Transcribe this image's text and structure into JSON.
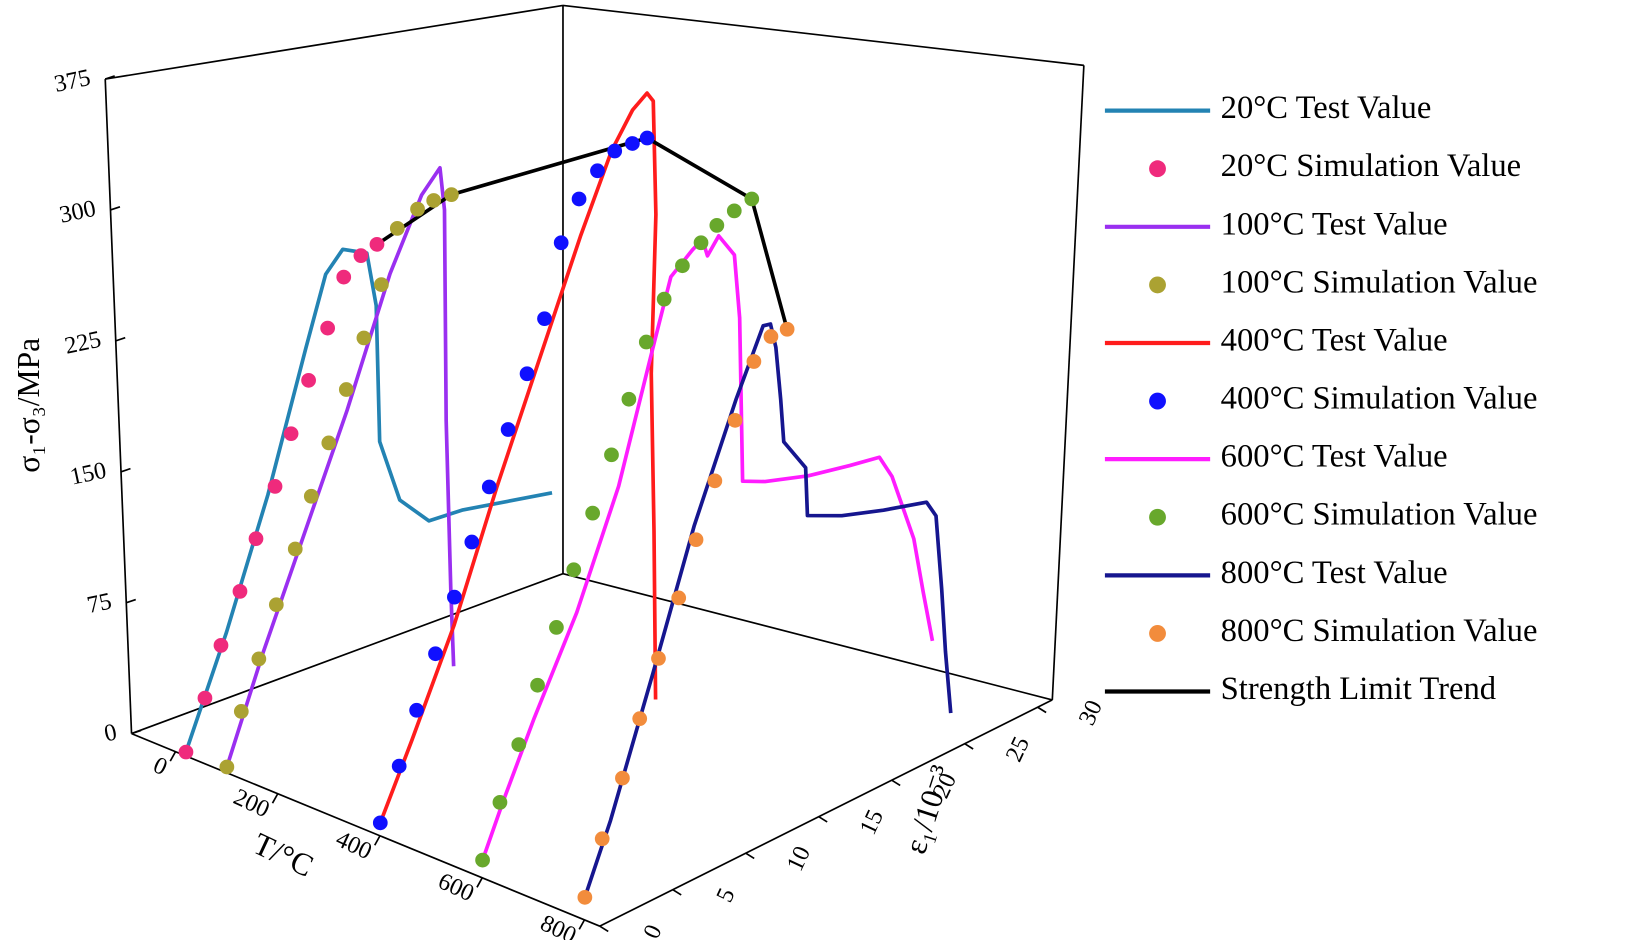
{
  "chart_data": {
    "type": "line3d",
    "t_label": "T/°C",
    "e_label": "ε₁/10⁻³",
    "y_label": "σ₁-σ₃/MPa",
    "tlim": [
      -86,
      830
    ],
    "tticks": [
      0,
      200,
      400,
      600,
      800
    ],
    "elim": [
      0,
      31
    ],
    "eticks": [
      0,
      5,
      10,
      15,
      20,
      25,
      30
    ],
    "ylim": [
      0,
      375
    ],
    "yticks": [
      0,
      75,
      150,
      225,
      300,
      375
    ],
    "series": [
      {
        "name": "20°C Test Value",
        "mode": "line",
        "color": "#2383b3",
        "temperature": 20,
        "x": [
          0,
          3,
          6.1,
          9,
          10.5,
          11.7,
          13.3,
          13.8,
          13.7,
          14.9,
          16.8,
          19.1,
          25.1
        ],
        "values": [
          0,
          58,
          126,
          200,
          237,
          247,
          239,
          207,
          129,
          91,
          72,
          70,
          58
        ]
      },
      {
        "name": "20°C Simulation Value",
        "mode": "markers",
        "color": "#ef2a7c",
        "temperature": 20,
        "x": [
          0,
          1.4,
          2.6,
          4,
          5.2,
          6.6,
          7.8,
          9.1,
          10.5,
          11.7,
          12.9,
          14
        ],
        "values": [
          0,
          26,
          52,
          78,
          104,
          129,
          155,
          181,
          206,
          231,
          239,
          241.5
        ]
      },
      {
        "name": "100°C Test Value",
        "mode": "line",
        "color": "#9a2ff0",
        "temperature": 100,
        "x": [
          0,
          2.7,
          5.8,
          8.9,
          12.1,
          14.4,
          15.7,
          15.9,
          15.5,
          15.4,
          15.4
        ],
        "values": [
          0,
          56,
          114.5,
          173,
          240,
          277,
          288,
          263,
          143,
          46,
          2
        ]
      },
      {
        "name": "100°C Simulation Value",
        "mode": "markers",
        "color": "#aba232",
        "temperature": 100,
        "x": [
          0,
          1.1,
          2.4,
          3.7,
          5.1,
          6.3,
          7.6,
          8.9,
          10.2,
          11.5,
          12.7,
          14.1,
          15.2,
          16.4
        ],
        "values": [
          0,
          28,
          53.5,
          80,
          107,
          133,
          159,
          185,
          210,
          236,
          264,
          270,
          271,
          270
        ]
      },
      {
        "name": "400°C Test Value",
        "mode": "line",
        "color": "#ff1c1c",
        "temperature": 400,
        "x": [
          0,
          2.3,
          5.4,
          8.6,
          11.7,
          14.8,
          17.1,
          18.6,
          19.6,
          20,
          19.9,
          19.2,
          19,
          18.7
        ],
        "values": [
          0,
          39,
          94,
          162,
          223,
          284,
          325,
          343,
          349,
          343,
          278,
          189,
          99,
          3
        ]
      },
      {
        "name": "400°C Simulation Value",
        "mode": "markers",
        "color": "#1010ff",
        "temperature": 400,
        "x": [
          0,
          1.4,
          2.7,
          4.1,
          5.5,
          6.8,
          8.1,
          9.5,
          10.9,
          12.2,
          13.5,
          14.8,
          16.1,
          17.3,
          18.5,
          19.5
        ],
        "values": [
          0,
          27.6,
          55,
          82.5,
          110,
          137,
          164,
          192,
          219,
          246,
          285,
          305.5,
          317,
          324,
          324,
          323.5
        ]
      },
      {
        "name": "600°C Test Value",
        "mode": "line",
        "color": "#ff1cff",
        "temperature": 600,
        "x": [
          0,
          1.5,
          3.8,
          6.9,
          10,
          12.4,
          14,
          15.5,
          16.2,
          16.5,
          17.3,
          18.3,
          18.5,
          18.3,
          19.8,
          22.7,
          25.5,
          27.5,
          28.3,
          29.6,
          30.1,
          30.6
        ],
        "values": [
          0,
          28,
          68,
          117.5,
          179,
          243,
          285,
          295,
          298.6,
          288,
          296.6,
          282,
          245,
          151.7,
          146,
          138.8,
          134.5,
          132,
          118,
          77.4,
          45,
          15
        ]
      },
      {
        "name": "600°C Simulation Value",
        "mode": "markers",
        "color": "#68a82c",
        "temperature": 600,
        "x": [
          0,
          1.3,
          2.7,
          4.1,
          5.5,
          6.8,
          8.2,
          9.6,
          10.9,
          12.2,
          13.5,
          14.8,
          16.1,
          17.2,
          18.4,
          19.6
        ],
        "values": [
          0,
          28.5,
          56.7,
          85.8,
          114,
          142.5,
          170,
          198.5,
          225.8,
          254,
          274,
          288.5,
          297,
          303,
          307,
          309.5
        ]
      },
      {
        "name": "800°C Test Value",
        "mode": "line",
        "color": "#16168f",
        "temperature": 800,
        "x": [
          0,
          1.9,
          5.1,
          8.2,
          11.3,
          13.3,
          13.8,
          14.1,
          14.3,
          14.4,
          15.8,
          15.8,
          18.1,
          20.9,
          23.8,
          24.4,
          24.6,
          24.7,
          24.9
        ],
        "values": [
          0,
          37.4,
          110.7,
          184,
          245.4,
          280.8,
          280,
          265.5,
          234.7,
          210,
          190,
          162.4,
          154,
          147,
          141,
          131,
          88,
          51.6,
          15.6
        ]
      },
      {
        "name": "800°C Simulation Value",
        "mode": "markers",
        "color": "#f28c3c",
        "temperature": 800,
        "x": [
          0,
          1.3,
          2.8,
          4.1,
          5.5,
          7,
          8.3,
          9.7,
          11.2,
          12.6,
          13.8,
          14.9
        ],
        "values": [
          0,
          29,
          58.5,
          88,
          117.6,
          147,
          175.8,
          204.6,
          234,
          262.8,
          272.8,
          273
        ]
      },
      {
        "name": "Strength Limit Trend",
        "mode": "line",
        "color": "#000000",
        "temperature": [
          20,
          100,
          400,
          600,
          800
        ],
        "x": [
          14,
          16.4,
          19.5,
          19.6,
          14.9
        ],
        "values": [
          241.5,
          270,
          323.5,
          309.5,
          273
        ]
      }
    ]
  }
}
